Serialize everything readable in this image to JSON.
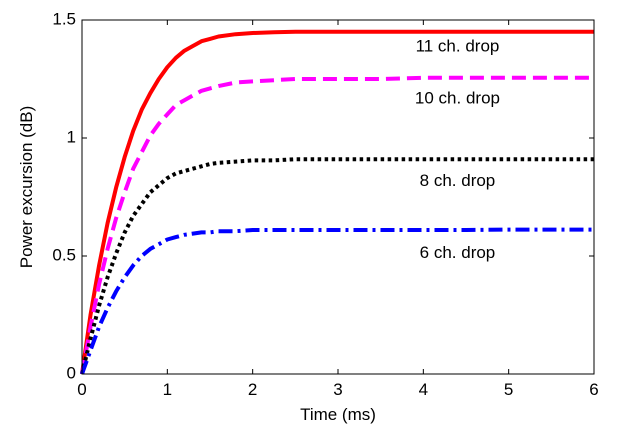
{
  "chart_data": {
    "type": "line",
    "xlabel": "Time (ms)",
    "ylabel": "Power excursion (dB)",
    "xlim": [
      0,
      6
    ],
    "ylim": [
      0,
      1.5
    ],
    "xticks": [
      "0",
      "1",
      "2",
      "3",
      "4",
      "5",
      "6"
    ],
    "yticks": [
      "0",
      "0.5",
      "1",
      "1.5"
    ],
    "grid": false,
    "x": [
      0,
      0.1,
      0.2,
      0.3,
      0.4,
      0.5,
      0.6,
      0.7,
      0.8,
      0.9,
      1.0,
      1.1,
      1.2,
      1.3,
      1.4,
      1.5,
      1.6,
      1.8,
      2.0,
      2.25,
      2.5,
      2.75,
      3.0,
      3.5,
      4.0,
      4.5,
      5.0,
      5.5,
      6.0
    ],
    "series": [
      {
        "name": "11 ch. drop",
        "color": "#ff0000",
        "dash": "solid",
        "values": [
          0,
          0.25,
          0.46,
          0.64,
          0.79,
          0.92,
          1.03,
          1.12,
          1.19,
          1.25,
          1.3,
          1.34,
          1.37,
          1.39,
          1.41,
          1.42,
          1.43,
          1.44,
          1.445,
          1.448,
          1.45,
          1.45,
          1.45,
          1.45,
          1.45,
          1.45,
          1.45,
          1.45,
          1.45
        ]
      },
      {
        "name": "10 ch. drop",
        "color": "#ff00ff",
        "dash": "dashed",
        "values": [
          0,
          0.2,
          0.38,
          0.53,
          0.66,
          0.77,
          0.87,
          0.94,
          1.01,
          1.06,
          1.1,
          1.14,
          1.16,
          1.18,
          1.2,
          1.21,
          1.22,
          1.235,
          1.24,
          1.245,
          1.25,
          1.25,
          1.25,
          1.25,
          1.255,
          1.255,
          1.255,
          1.255,
          1.255
        ]
      },
      {
        "name": "8 ch. drop",
        "color": "#000000",
        "dash": "dotted",
        "values": [
          0,
          0.15,
          0.29,
          0.41,
          0.51,
          0.6,
          0.67,
          0.72,
          0.77,
          0.8,
          0.83,
          0.85,
          0.86,
          0.87,
          0.88,
          0.89,
          0.895,
          0.9,
          0.905,
          0.905,
          0.91,
          0.91,
          0.91,
          0.91,
          0.91,
          0.91,
          0.91,
          0.91,
          0.91
        ]
      },
      {
        "name": "6 ch. drop",
        "color": "#0000ff",
        "dash": "dashdot",
        "values": [
          0,
          0.1,
          0.2,
          0.28,
          0.35,
          0.41,
          0.46,
          0.5,
          0.53,
          0.55,
          0.57,
          0.58,
          0.59,
          0.595,
          0.6,
          0.6,
          0.605,
          0.605,
          0.61,
          0.61,
          0.61,
          0.61,
          0.61,
          0.61,
          0.61,
          0.61,
          0.612,
          0.612,
          0.612
        ]
      }
    ],
    "annotations": [
      {
        "text": "11 ch. drop",
        "x": 4.4,
        "y": 1.385
      },
      {
        "text": "10 ch. drop",
        "x": 4.4,
        "y": 1.165
      },
      {
        "text": "8 ch. drop",
        "x": 4.4,
        "y": 0.815
      },
      {
        "text": "6 ch. drop",
        "x": 4.4,
        "y": 0.51
      }
    ]
  }
}
